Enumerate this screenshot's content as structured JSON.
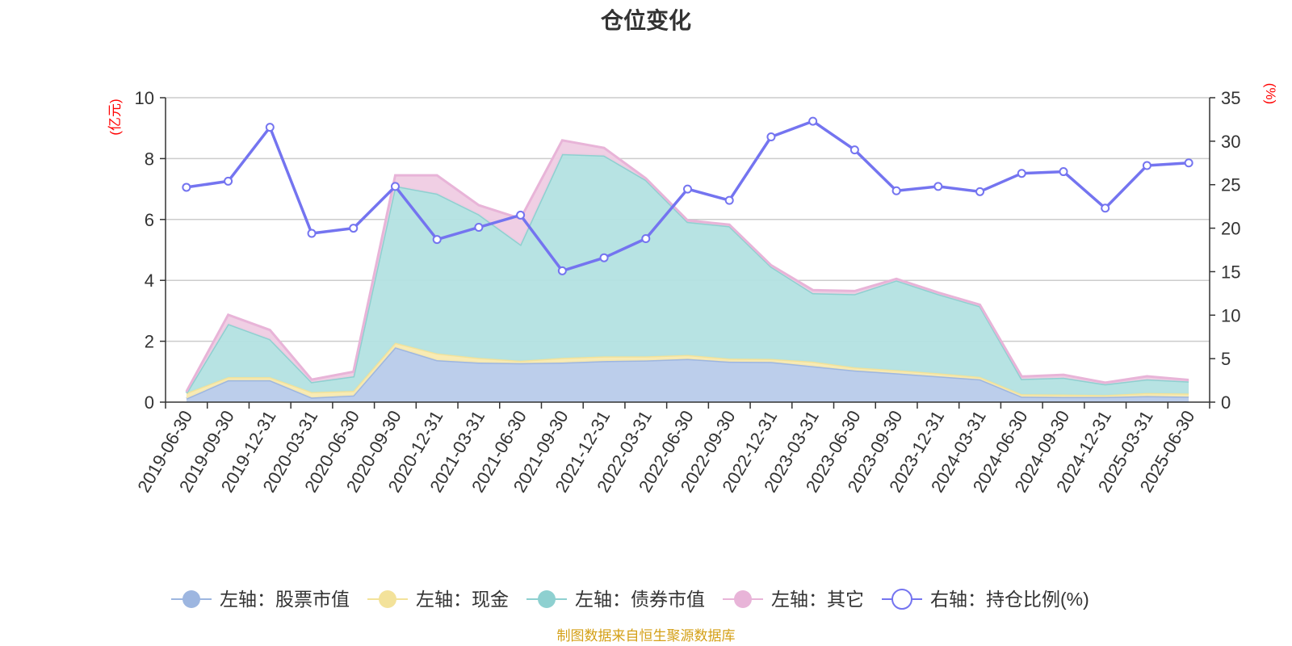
{
  "chart_data": {
    "type": "area",
    "title": "仓位变化",
    "left_axis_unit": "(亿元)",
    "right_axis_unit": "(%)",
    "ylim_left": [
      0,
      10
    ],
    "ylim_right": [
      0,
      35
    ],
    "left_ticks": [
      "0",
      "2",
      "4",
      "6",
      "8",
      "10"
    ],
    "right_ticks": [
      "0",
      "5",
      "10",
      "15",
      "20",
      "25",
      "30",
      "35"
    ],
    "grid": true,
    "legend_position": "bottom",
    "categories": [
      "2019-06-30",
      "2019-09-30",
      "2019-12-31",
      "2020-03-31",
      "2020-06-30",
      "2020-09-30",
      "2020-12-31",
      "2021-03-31",
      "2021-06-30",
      "2021-09-30",
      "2021-12-31",
      "2022-03-31",
      "2022-06-30",
      "2022-09-30",
      "2022-12-31",
      "2023-03-31",
      "2023-06-30",
      "2023-09-30",
      "2023-12-31",
      "2024-03-31",
      "2024-06-30",
      "2024-09-30",
      "2024-12-31",
      "2025-03-31",
      "2025-06-30"
    ],
    "stacked_series": [
      {
        "name": "左轴：股票市值",
        "color": "#9db6e0",
        "fill": "#b8cbea",
        "values": [
          0.12,
          0.72,
          0.72,
          0.15,
          0.22,
          1.8,
          1.38,
          1.3,
          1.28,
          1.3,
          1.35,
          1.37,
          1.42,
          1.33,
          1.32,
          1.18,
          1.04,
          0.95,
          0.85,
          0.75,
          0.18,
          0.17,
          0.17,
          0.2,
          0.18
        ]
      },
      {
        "name": "左轴：现金",
        "color": "#f3e29a",
        "fill": "#f8eab0",
        "values": [
          0.18,
          0.1,
          0.1,
          0.18,
          0.15,
          0.15,
          0.22,
          0.15,
          0.08,
          0.15,
          0.15,
          0.13,
          0.13,
          0.1,
          0.1,
          0.15,
          0.1,
          0.1,
          0.1,
          0.08,
          0.08,
          0.08,
          0.06,
          0.1,
          0.1
        ]
      },
      {
        "name": "左轴：债券市值",
        "color": "#8ed0d0",
        "fill": "#b3e2e2",
        "values": [
          0.0,
          1.75,
          1.25,
          0.33,
          0.48,
          5.15,
          5.25,
          4.72,
          3.82,
          6.7,
          6.6,
          5.8,
          4.37,
          4.35,
          3.03,
          2.25,
          2.41,
          2.95,
          2.6,
          2.32,
          0.5,
          0.55,
          0.36,
          0.45,
          0.4
        ]
      },
      {
        "name": "左轴：其它",
        "color": "#e8b4d8",
        "fill": "#efcce3",
        "values": [
          0.05,
          0.3,
          0.3,
          0.08,
          0.15,
          0.35,
          0.6,
          0.3,
          0.85,
          0.45,
          0.25,
          0.05,
          0.05,
          0.05,
          0.05,
          0.1,
          0.1,
          0.05,
          0.05,
          0.05,
          0.08,
          0.1,
          0.05,
          0.1,
          0.05
        ]
      }
    ],
    "line_series": {
      "name": "右轴：持仓比例(%)",
      "color": "#7474f0",
      "values": [
        24.7,
        25.4,
        31.6,
        19.4,
        20.0,
        24.8,
        18.7,
        20.1,
        21.5,
        15.1,
        16.6,
        18.8,
        24.5,
        23.2,
        30.5,
        32.3,
        29.0,
        24.3,
        24.8,
        24.2,
        26.3,
        26.5,
        22.3,
        27.2,
        27.5
      ]
    }
  },
  "footer": {
    "source": "制图数据来自恒生聚源数据库"
  }
}
